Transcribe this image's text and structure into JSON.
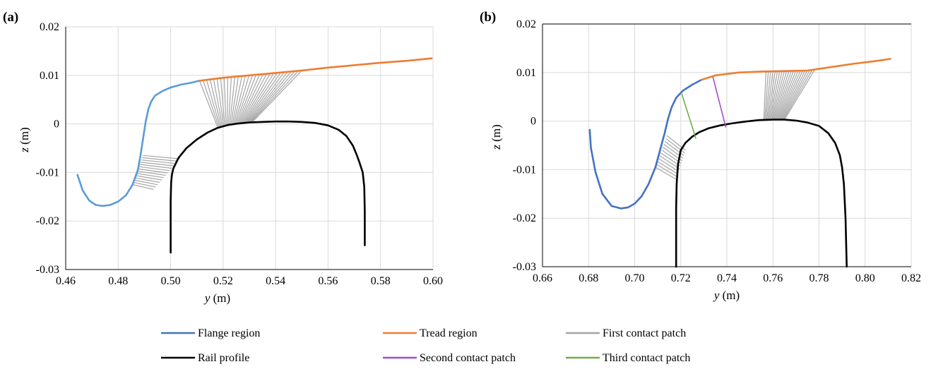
{
  "colors": {
    "flange": "#5b9bd5",
    "flange_b": "#4472c4",
    "tread": "#ed7d31",
    "contact1": "#a5a5a5",
    "rail": "#000000",
    "contact2": "#a64dc9",
    "contact3": "#70ad47",
    "grid": "#d9d9d9"
  },
  "legend": {
    "items": [
      {
        "label": "Flange region",
        "color": "#4472c4"
      },
      {
        "label": "Tread region",
        "color": "#ed7d31"
      },
      {
        "label": "First contact patch",
        "color": "#a5a5a5"
      },
      {
        "label": "Rail profile",
        "color": "#000000"
      },
      {
        "label": "Second contact patch",
        "color": "#a64dc9"
      },
      {
        "label": "Third contact patch",
        "color": "#70ad47"
      }
    ]
  },
  "chart_data": [
    {
      "type": "line",
      "panel_label": "(a)",
      "xlabel_italic": "y",
      "xlabel_unit": " (m)",
      "ylabel_italic": "z",
      "ylabel_unit": " (m)",
      "xlim": [
        0.46,
        0.6
      ],
      "ylim": [
        -0.03,
        0.02
      ],
      "xticks": [
        "0.46",
        "0.48",
        "0.50",
        "0.52",
        "0.54",
        "0.56",
        "0.58",
        "0.60"
      ],
      "yticks": [
        "-0.03",
        "-0.02",
        "-0.01",
        "0",
        "0.01",
        "0.02"
      ],
      "grid": true,
      "series": [
        {
          "key": "flange",
          "x": [
            0.4645,
            0.4665,
            0.469,
            0.4715,
            0.474,
            0.477,
            0.48,
            0.483,
            0.4855,
            0.4875,
            0.4885,
            0.4895,
            0.4905,
            0.4915,
            0.4925,
            0.494,
            0.497,
            0.5,
            0.504,
            0.508,
            0.511
          ],
          "y": [
            -0.0105,
            -0.0137,
            -0.0158,
            -0.0167,
            -0.0169,
            -0.0167,
            -0.016,
            -0.0147,
            -0.0125,
            -0.0095,
            -0.0065,
            -0.003,
            0.0005,
            0.003,
            0.0045,
            0.0058,
            0.0068,
            0.0075,
            0.0081,
            0.0085,
            0.0089
          ]
        },
        {
          "key": "tread",
          "x": [
            0.511,
            0.52,
            0.53,
            0.54,
            0.55,
            0.56,
            0.57,
            0.58,
            0.59,
            0.5995
          ],
          "y": [
            0.0089,
            0.0095,
            0.01,
            0.0105,
            0.011,
            0.0116,
            0.0121,
            0.0126,
            0.013,
            0.0135
          ]
        },
        {
          "key": "rail",
          "x": [
            0.5,
            0.5,
            0.5002,
            0.5005,
            0.501,
            0.503,
            0.506,
            0.51,
            0.514,
            0.518,
            0.522,
            0.526,
            0.53,
            0.535,
            0.54,
            0.545,
            0.55,
            0.555,
            0.56,
            0.564,
            0.567,
            0.5695,
            0.571,
            0.572,
            0.5732,
            0.5738,
            0.574,
            0.574
          ],
          "y": [
            -0.0265,
            -0.016,
            -0.012,
            -0.0105,
            -0.0092,
            -0.007,
            -0.005,
            -0.0032,
            -0.0018,
            -0.0008,
            -0.0002,
            0.0001,
            0.0003,
            0.0004,
            0.0005,
            0.0005,
            0.0004,
            0.0002,
            -0.0003,
            -0.0012,
            -0.0025,
            -0.0045,
            -0.0065,
            -0.008,
            -0.01,
            -0.013,
            -0.018,
            -0.025
          ]
        }
      ],
      "contact_patches": [
        {
          "key": "contact1",
          "from_x": [
            0.511,
            0.55
          ],
          "from_y": [
            0.0089,
            0.011
          ],
          "to_x": [
            0.518,
            0.531
          ],
          "to_y": [
            -0.0008,
            0.0003
          ],
          "count": 30
        },
        {
          "key": "contact1",
          "from_x": [
            0.4855,
            0.4895
          ],
          "from_y": [
            -0.0125,
            -0.0065
          ],
          "to_x": [
            0.4935,
            0.5035
          ],
          "to_y": [
            -0.0135,
            -0.0072
          ],
          "count": 14
        }
      ]
    },
    {
      "type": "line",
      "panel_label": "(b)",
      "xlabel_italic": "y",
      "xlabel_unit": " (m)",
      "ylabel_italic": "z",
      "ylabel_unit": " (m)",
      "xlim": [
        0.66,
        0.82
      ],
      "ylim": [
        -0.03,
        0.02
      ],
      "xticks": [
        "0.66",
        "0.68",
        "0.70",
        "0.72",
        "0.74",
        "0.76",
        "0.78",
        "0.80",
        "0.82"
      ],
      "yticks": [
        "-0.03",
        "-0.02",
        "-0.01",
        "0",
        "0.01",
        "0.02"
      ],
      "grid": true,
      "series": [
        {
          "key": "flange_b",
          "x": [
            0.6805,
            0.681,
            0.683,
            0.686,
            0.69,
            0.694,
            0.697,
            0.7,
            0.703,
            0.706,
            0.709,
            0.711,
            0.713,
            0.7145,
            0.716,
            0.718,
            0.721,
            0.725,
            0.729
          ],
          "y": [
            -0.0018,
            -0.0055,
            -0.0105,
            -0.015,
            -0.0175,
            -0.018,
            -0.0178,
            -0.017,
            -0.0155,
            -0.013,
            -0.0095,
            -0.006,
            -0.0025,
            0.0005,
            0.0028,
            0.0048,
            0.0063,
            0.0075,
            0.0085
          ]
        },
        {
          "key": "tread",
          "x": [
            0.729,
            0.735,
            0.745,
            0.755,
            0.765,
            0.775,
            0.785,
            0.795,
            0.805,
            0.811
          ],
          "y": [
            0.0085,
            0.0094,
            0.01,
            0.0102,
            0.0103,
            0.0104,
            0.0111,
            0.0118,
            0.0124,
            0.0128
          ]
        },
        {
          "key": "rail",
          "x": [
            0.718,
            0.718,
            0.7182,
            0.7188,
            0.72,
            0.722,
            0.725,
            0.728,
            0.732,
            0.737,
            0.742,
            0.748,
            0.754,
            0.76,
            0.765,
            0.77,
            0.775,
            0.78,
            0.784,
            0.787,
            0.789,
            0.79,
            0.7908,
            0.7915,
            0.792
          ],
          "y": [
            -0.03,
            -0.018,
            -0.013,
            -0.009,
            -0.006,
            -0.0045,
            -0.0032,
            -0.0023,
            -0.0015,
            -0.0009,
            -0.0005,
            -0.0001,
            0.0002,
            0.0003,
            0.0003,
            0.0001,
            -0.0003,
            -0.001,
            -0.0025,
            -0.0045,
            -0.007,
            -0.0095,
            -0.013,
            -0.02,
            -0.03
          ]
        },
        {
          "key": "contact2",
          "x": [
            0.734,
            0.7395
          ],
          "y": [
            0.009,
            -0.0012
          ]
        },
        {
          "key": "contact3",
          "x": [
            0.7205,
            0.7265
          ],
          "y": [
            0.0055,
            -0.0035
          ]
        }
      ],
      "contact_patches": [
        {
          "key": "contact1",
          "from_x": [
            0.757,
            0.778
          ],
          "from_y": [
            0.0103,
            0.0105
          ],
          "to_x": [
            0.756,
            0.765
          ],
          "to_y": [
            0.0002,
            0.0003
          ],
          "count": 22
        },
        {
          "key": "contact1",
          "from_x": [
            0.709,
            0.714
          ],
          "from_y": [
            -0.0095,
            -0.003
          ],
          "to_x": [
            0.718,
            0.722
          ],
          "to_y": [
            -0.012,
            -0.006
          ],
          "count": 12
        }
      ]
    }
  ]
}
